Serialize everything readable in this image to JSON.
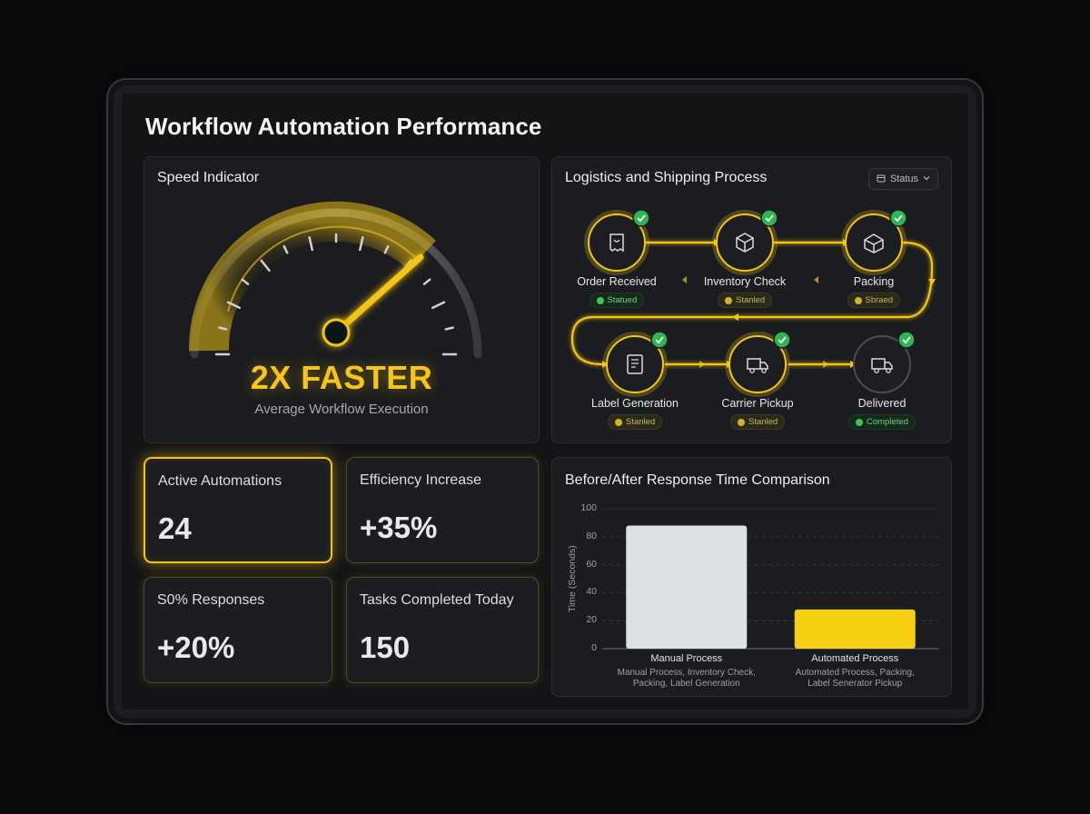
{
  "dashboard": {
    "title": "Workflow Automation Performance"
  },
  "speed": {
    "title": "Speed Indicator",
    "headline": "2X FASTER",
    "subtitle": "Average Workflow Execution"
  },
  "stats": [
    {
      "label": "Active Automations",
      "value": "24"
    },
    {
      "label": "Efficiency Increase",
      "value": "+35%"
    },
    {
      "label": "S0% Responses",
      "value": "+20%"
    },
    {
      "label": "Tasks Completed Today",
      "value": "150"
    }
  ],
  "process": {
    "title": "Logistics and Shipping Process",
    "status_button": "Status",
    "steps": [
      {
        "label": "Order Received",
        "badge": "Statued",
        "icon": "receipt-icon",
        "badge_color": "#3ec25e"
      },
      {
        "label": "Inventory Check",
        "badge": "Stanled",
        "icon": "box-icon",
        "badge_color": "#d4b22c"
      },
      {
        "label": "Packing",
        "badge": "Sbraed",
        "icon": "package-icon",
        "badge_color": "#d4b22c"
      },
      {
        "label": "Label Generation",
        "badge": "Stanled",
        "icon": "document-icon",
        "badge_color": "#d4b22c"
      },
      {
        "label": "Carrier Pickup",
        "badge": "Stanled",
        "icon": "truck-icon",
        "badge_color": "#d4b22c"
      },
      {
        "label": "Delivered",
        "badge": "Completed",
        "icon": "truck-icon",
        "badge_color": "#3ec25e"
      }
    ]
  },
  "chart_data": {
    "type": "bar",
    "title": "Before/After Response Time Comparison",
    "ylabel": "Time (Seconds)",
    "ylim": [
      0,
      100
    ],
    "yticks": [
      0,
      20,
      40,
      60,
      80,
      100
    ],
    "grid": true,
    "categories": [
      "Manual Process",
      "Automated Process"
    ],
    "category_notes": [
      [
        "Manual Process, Inventory Check,",
        "Packing, Label Generation"
      ],
      [
        "Automated Process, Packing,",
        "Label Senerator Pickup"
      ]
    ],
    "values": [
      88,
      28
    ],
    "colors": [
      "#dde0e4",
      "#f5cf12"
    ]
  },
  "colors": {
    "accent": "#f5c518",
    "success": "#3ec25e",
    "background": "#0a0b0c",
    "panel": "#1a1c1f"
  }
}
